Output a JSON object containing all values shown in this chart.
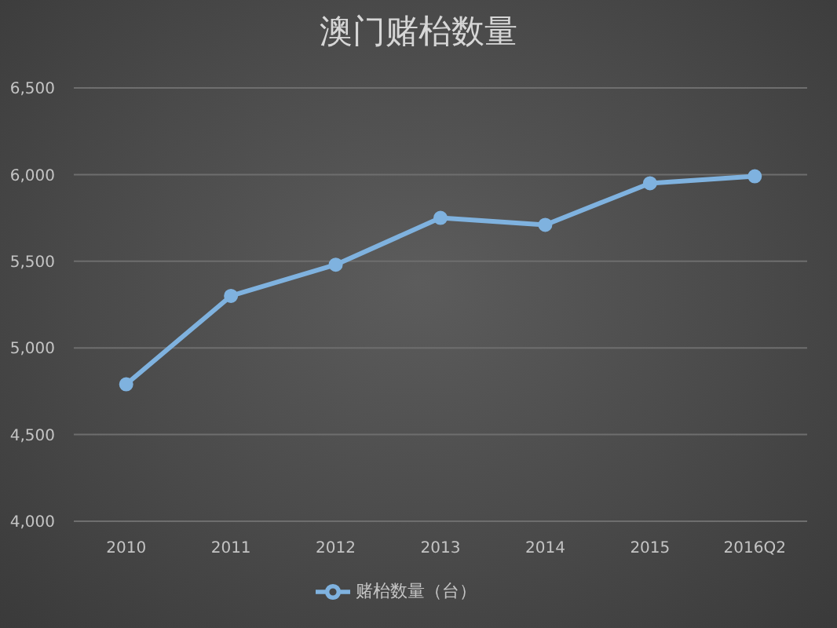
{
  "chart_data": {
    "type": "line",
    "title": "澳门赌枱数量",
    "categories": [
      "2010",
      "2011",
      "2012",
      "2013",
      "2014",
      "2015",
      "2016Q2"
    ],
    "series": [
      {
        "name": "赌枱数量（台）",
        "color": "#7fb2df",
        "values": [
          4790,
          5300,
          5480,
          5750,
          5710,
          5950,
          5990
        ]
      }
    ],
    "ylim": [
      4000,
      6500
    ],
    "yticks": [
      {
        "value": 4000,
        "label": "4,000"
      },
      {
        "value": 4500,
        "label": "4,500"
      },
      {
        "value": 5000,
        "label": "5,000"
      },
      {
        "value": 5500,
        "label": "5,500"
      },
      {
        "value": 6000,
        "label": "6,000"
      },
      {
        "value": 6500,
        "label": "6,500"
      }
    ],
    "grid": "y",
    "legend": "bottom",
    "marker": "circle",
    "line_style": "solid"
  }
}
